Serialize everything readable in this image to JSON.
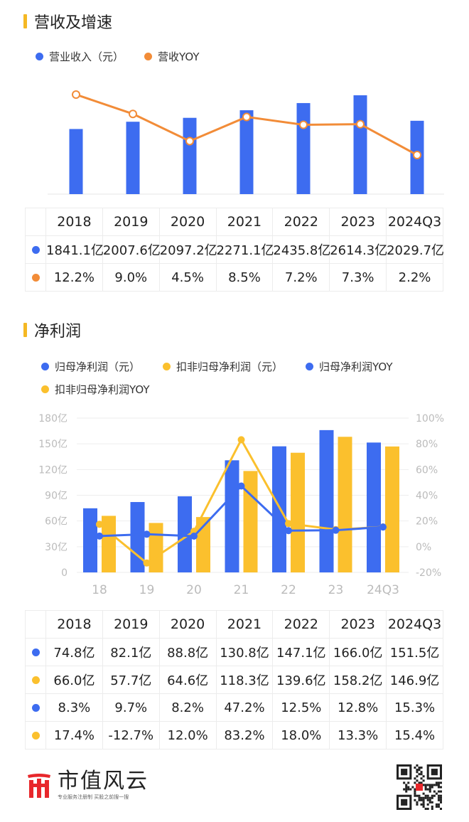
{
  "colors": {
    "blue": "#3d6cf0",
    "orange": "#f28c38",
    "yellow": "#fbc02d",
    "grid": "#ececec",
    "axis_text": "#bbbbbb",
    "accent_bar": "#f5b823"
  },
  "section1": {
    "title": "营收及增速",
    "legend": [
      {
        "label": "营业收入（元）",
        "color": "#3d6cf0"
      },
      {
        "label": "营收YOY",
        "color": "#f28c38"
      }
    ],
    "table": {
      "headers": [
        "2018",
        "2019",
        "2020",
        "2021",
        "2022",
        "2023",
        "2024Q3"
      ],
      "rows": [
        {
          "marker": "#3d6cf0",
          "cells": [
            "1841.1亿",
            "2007.6亿",
            "2097.2亿",
            "2271.1亿",
            "2435.8亿",
            "2614.3亿",
            "2029.7亿"
          ]
        },
        {
          "marker": "#f28c38",
          "cells": [
            "12.2%",
            "9.0%",
            "4.5%",
            "8.5%",
            "7.2%",
            "7.3%",
            "2.2%"
          ]
        }
      ]
    }
  },
  "section2": {
    "title": "净利润",
    "legend": [
      {
        "label": "归母净利润（元）",
        "color": "#3d6cf0"
      },
      {
        "label": "扣非归母净利润（元）",
        "color": "#fbc02d"
      },
      {
        "label": "归母净利润YOY",
        "color": "#3d6cf0"
      },
      {
        "label": "扣非归母净利润YOY",
        "color": "#fbc02d"
      }
    ],
    "table": {
      "headers": [
        "2018",
        "2019",
        "2020",
        "2021",
        "2022",
        "2023",
        "2024Q3"
      ],
      "rows": [
        {
          "marker": "#3d6cf0",
          "cells": [
            "74.8亿",
            "82.1亿",
            "88.8亿",
            "130.8亿",
            "147.1亿",
            "166.0亿",
            "151.5亿"
          ]
        },
        {
          "marker": "#fbc02d",
          "cells": [
            "66.0亿",
            "57.7亿",
            "64.6亿",
            "118.3亿",
            "139.6亿",
            "158.2亿",
            "146.9亿"
          ]
        },
        {
          "marker": "#3d6cf0",
          "cells": [
            "8.3%",
            "9.7%",
            "8.2%",
            "47.2%",
            "12.5%",
            "12.8%",
            "15.3%"
          ]
        },
        {
          "marker": "#fbc02d",
          "cells": [
            "17.4%",
            "-12.7%",
            "12.0%",
            "83.2%",
            "18.0%",
            "13.3%",
            "15.4%"
          ]
        }
      ]
    }
  },
  "chart_data": [
    {
      "type": "bar",
      "title": "营收及增速",
      "categories": [
        "2018",
        "2019",
        "2020",
        "2021",
        "2022",
        "2023",
        "2024Q3"
      ],
      "grid": false,
      "axes_visible": false,
      "series": [
        {
          "name": "营业收入（元）",
          "type": "bar",
          "unit": "亿",
          "values": [
            1841.1,
            2007.6,
            2097.2,
            2271.1,
            2435.8,
            2614.3,
            2029.7
          ],
          "color": "#3d6cf0"
        },
        {
          "name": "营收YOY",
          "type": "line",
          "unit": "%",
          "values": [
            12.2,
            9.0,
            4.5,
            8.5,
            7.2,
            7.3,
            2.2
          ],
          "color": "#f28c38"
        }
      ]
    },
    {
      "type": "bar",
      "title": "净利润",
      "categories": [
        "18",
        "19",
        "20",
        "21",
        "22",
        "23",
        "24Q3"
      ],
      "grid": true,
      "y_left": {
        "ticks": [
          "0",
          "30亿",
          "60亿",
          "90亿",
          "120亿",
          "150亿",
          "180亿"
        ],
        "tick_values": [
          0,
          30,
          60,
          90,
          120,
          150,
          180
        ],
        "ylim": [
          0,
          180
        ]
      },
      "y_right": {
        "ticks": [
          "-20%",
          "0%",
          "20%",
          "40%",
          "60%",
          "80%",
          "100%"
        ],
        "tick_values": [
          -20,
          0,
          20,
          40,
          60,
          80,
          100
        ],
        "ylim": [
          -20,
          100
        ]
      },
      "series": [
        {
          "name": "归母净利润（元）",
          "type": "bar",
          "axis": "left",
          "values": [
            74.8,
            82.1,
            88.8,
            130.8,
            147.1,
            166.0,
            151.5
          ],
          "color": "#3d6cf0"
        },
        {
          "name": "扣非归母净利润（元）",
          "type": "bar",
          "axis": "left",
          "values": [
            66.0,
            57.7,
            64.6,
            118.3,
            139.6,
            158.2,
            146.9
          ],
          "color": "#fbc02d"
        },
        {
          "name": "归母净利润YOY",
          "type": "line",
          "axis": "right",
          "values": [
            8.3,
            9.7,
            8.2,
            47.2,
            12.5,
            12.8,
            15.3
          ],
          "color": "#3d6cf0"
        },
        {
          "name": "扣非归母净利润YOY",
          "type": "line",
          "axis": "right",
          "values": [
            17.4,
            -12.7,
            12.0,
            83.2,
            18.0,
            13.3,
            15.4
          ],
          "color": "#fbc02d"
        }
      ]
    }
  ],
  "footer": {
    "brand_name": "市值风云",
    "brand_slogan": "专业服务注册制 买股之前搜一搜",
    "logo_icon": "shizhi-logo-icon",
    "qr_icon": "qr-code-icon"
  }
}
